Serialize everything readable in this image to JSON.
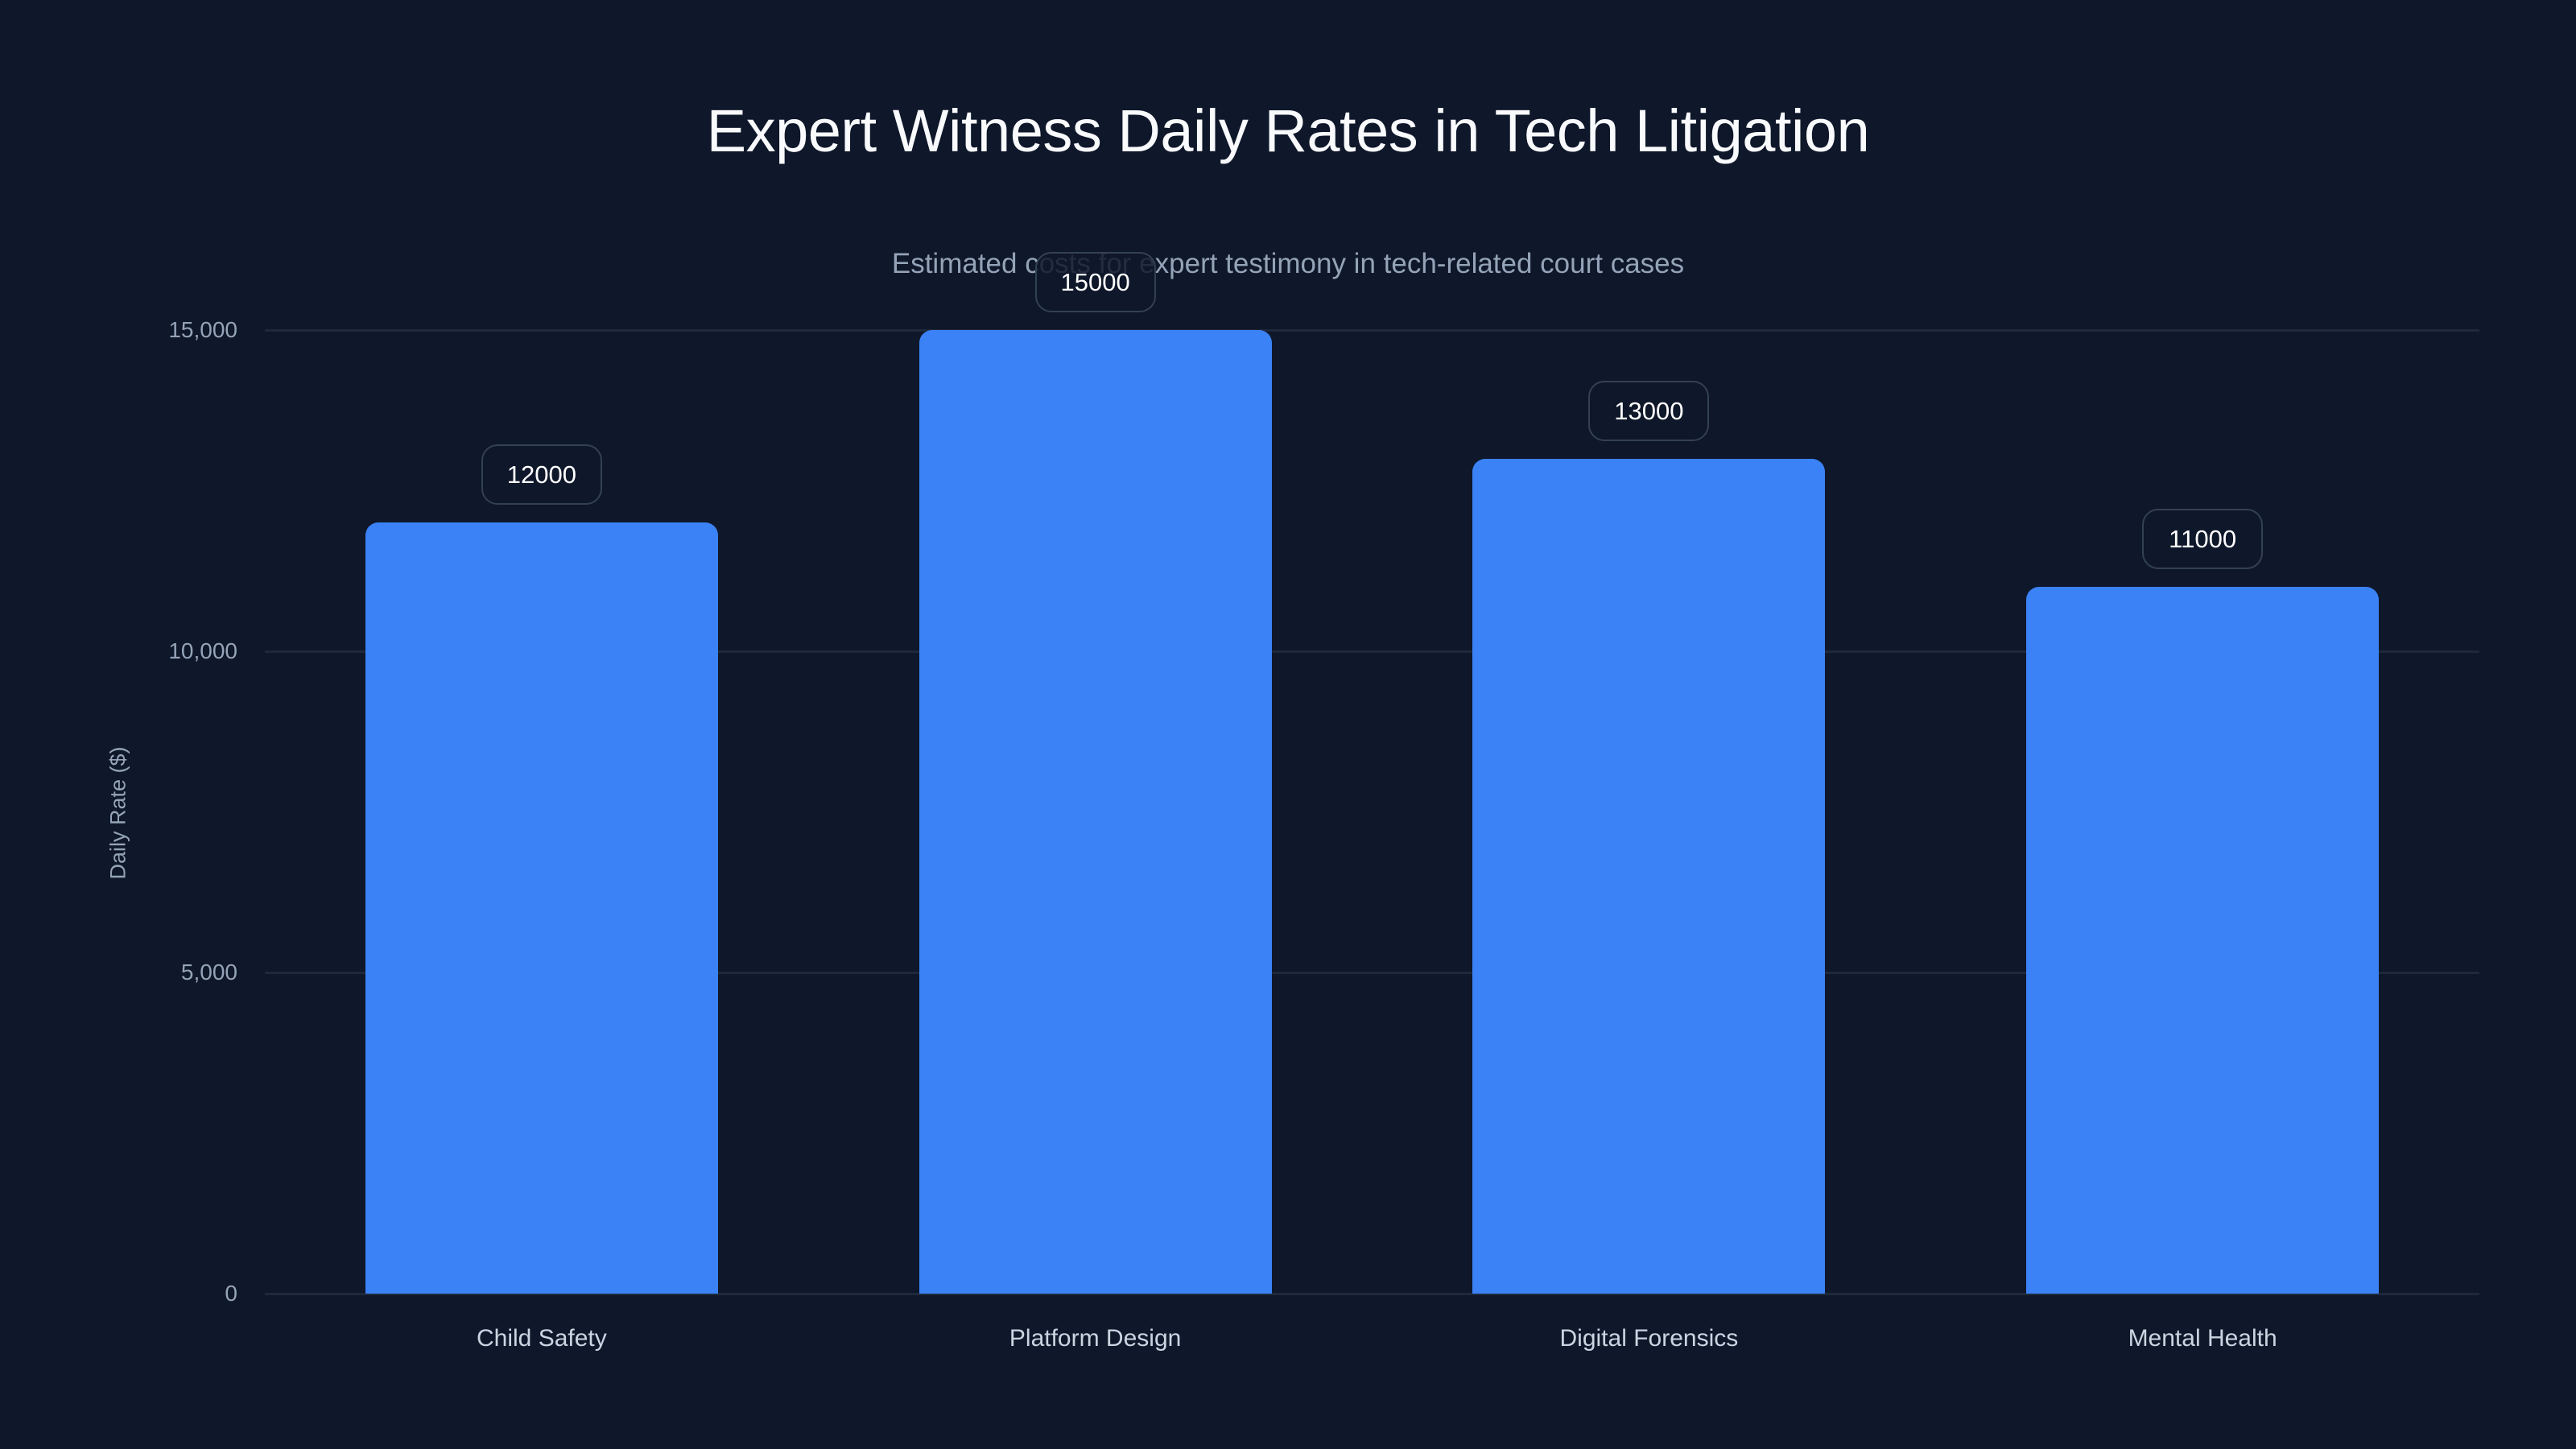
{
  "chart_data": {
    "type": "bar",
    "title": "Expert Witness Daily Rates in Tech Litigation",
    "subtitle": "Estimated costs for expert testimony in tech-related court cases",
    "xlabel": "",
    "ylabel": "Daily Rate ($)",
    "categories": [
      "Child Safety",
      "Platform Design",
      "Digital Forensics",
      "Mental Health"
    ],
    "values": [
      12000,
      15000,
      13000,
      11000
    ],
    "value_labels": [
      "12000",
      "15000",
      "13000",
      "11000"
    ],
    "ylim": [
      0,
      15000
    ],
    "yticks": [
      0,
      5000,
      10000,
      15000
    ],
    "ytick_labels": [
      "0",
      "5,000",
      "10,000",
      "15,000"
    ],
    "grid": true,
    "legend": null,
    "colors": {
      "bar": "#3b82f6",
      "background": "#0f172a",
      "grid": "#1e293b"
    }
  }
}
